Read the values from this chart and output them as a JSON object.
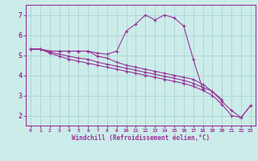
{
  "xlabel": "Windchill (Refroidissement éolien,°C)",
  "bg_color": "#ccecea",
  "line_color": "#993399",
  "grid_color": "#aad4d2",
  "x_hours": [
    0,
    1,
    2,
    3,
    4,
    5,
    6,
    7,
    8,
    9,
    10,
    11,
    12,
    13,
    14,
    15,
    16,
    17,
    18,
    19,
    20,
    21,
    22,
    23
  ],
  "line1": [
    5.3,
    5.3,
    5.2,
    5.2,
    5.2,
    5.2,
    5.2,
    5.1,
    5.05,
    5.2,
    6.2,
    6.55,
    7.0,
    6.75,
    7.0,
    6.85,
    6.45,
    4.8,
    3.3,
    null,
    null,
    null,
    null,
    null
  ],
  "line2": [
    5.3,
    5.3,
    5.2,
    5.2,
    5.2,
    5.2,
    5.2,
    4.95,
    4.85,
    4.65,
    4.5,
    4.4,
    4.3,
    4.2,
    4.1,
    4.0,
    3.9,
    3.8,
    3.55,
    3.2,
    2.8,
    null,
    null,
    null
  ],
  "line3": [
    5.3,
    5.3,
    5.15,
    5.05,
    4.95,
    4.85,
    4.8,
    4.65,
    4.55,
    4.45,
    4.35,
    4.25,
    4.15,
    4.05,
    3.95,
    3.85,
    3.75,
    3.6,
    3.4,
    3.2,
    2.7,
    2.25,
    1.9,
    2.5
  ],
  "line4": [
    5.3,
    5.3,
    5.1,
    4.95,
    4.8,
    4.7,
    4.6,
    4.5,
    4.4,
    4.3,
    4.2,
    4.1,
    4.0,
    3.9,
    3.8,
    3.7,
    3.6,
    3.45,
    3.25,
    3.0,
    2.55,
    2.0,
    1.9,
    2.5
  ],
  "ylim": [
    1.5,
    7.5
  ],
  "yticks": [
    2,
    3,
    4,
    5,
    6,
    7
  ],
  "xticks": [
    0,
    1,
    2,
    3,
    4,
    5,
    6,
    7,
    8,
    9,
    10,
    11,
    12,
    13,
    14,
    15,
    16,
    17,
    18,
    19,
    20,
    21,
    22,
    23
  ]
}
